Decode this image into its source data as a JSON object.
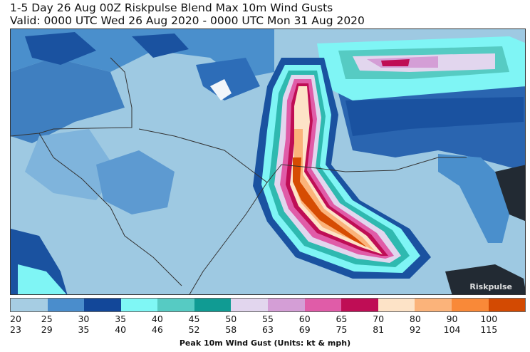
{
  "title": {
    "line1": "1-5 Day 26 Aug 00Z Riskpulse Blend Max 10m Wind Gusts",
    "line2": "Valid: 0000 UTC Wed 26 Aug 2020 - 0000 UTC Mon 31 Aug 2020"
  },
  "map": {
    "watermark": "Riskpulse",
    "colors": {
      "background": "#9ec9e2",
      "land_mid": "#4a8fcc",
      "land_dark": "#1a52a0",
      "highlight": "#d8ecf7",
      "cyan": "#7ff5f5",
      "teal": "#2fb9b0",
      "orange": "#d64c02",
      "dark_land": "#222a33",
      "border": "#333333"
    }
  },
  "legend": {
    "units_label": "Peak 10m Wind Gust (Units: kt & mph)",
    "swatches": [
      {
        "color": "#a6cde3"
      },
      {
        "color": "#4a8dcc"
      },
      {
        "color": "#124799"
      },
      {
        "color": "#7ff7f5"
      },
      {
        "color": "#56cbc3"
      },
      {
        "color": "#109b93"
      },
      {
        "color": "#e2d6ee"
      },
      {
        "color": "#d49ed6"
      },
      {
        "color": "#e05ca8"
      },
      {
        "color": "#bf0d55"
      },
      {
        "color": "#fde3c7"
      },
      {
        "color": "#fbb37a"
      },
      {
        "color": "#f98938"
      },
      {
        "color": "#d34a02"
      }
    ],
    "ticks": [
      {
        "kt": "20",
        "mph": "23"
      },
      {
        "kt": "25",
        "mph": "29"
      },
      {
        "kt": "30",
        "mph": "35"
      },
      {
        "kt": "35",
        "mph": "40"
      },
      {
        "kt": "40",
        "mph": "46"
      },
      {
        "kt": "45",
        "mph": "52"
      },
      {
        "kt": "50",
        "mph": "58"
      },
      {
        "kt": "55",
        "mph": "63"
      },
      {
        "kt": "60",
        "mph": "69"
      },
      {
        "kt": "65",
        "mph": "75"
      },
      {
        "kt": "70",
        "mph": "81"
      },
      {
        "kt": "80",
        "mph": "92"
      },
      {
        "kt": "90",
        "mph": "104"
      },
      {
        "kt": "100",
        "mph": "115"
      }
    ]
  }
}
